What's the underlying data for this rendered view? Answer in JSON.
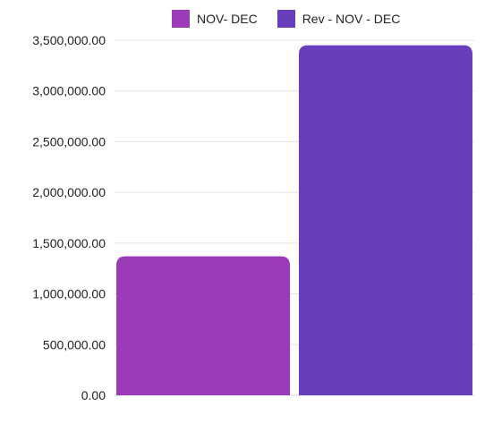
{
  "chart_data": {
    "type": "bar",
    "title": "",
    "xlabel": "",
    "ylabel": "",
    "categories": [
      ""
    ],
    "series": [
      {
        "name": "NOV- DEC",
        "values": [
          1370000
        ],
        "color": "#9b3bb8"
      },
      {
        "name": "Rev - NOV - DEC",
        "values": [
          3450000
        ],
        "color": "#673fbd"
      }
    ],
    "ylim": [
      0,
      3500000
    ],
    "yticks": [
      0,
      500000,
      1000000,
      1500000,
      2000000,
      2500000,
      3000000,
      3500000
    ],
    "ytick_labels": [
      "0.00",
      "500,000.00",
      "1,000,000.00",
      "1,500,000.00",
      "2,000,000.00",
      "2,500,000.00",
      "3,000,000.00",
      "3,500,000.00"
    ],
    "grid": true,
    "legend_position": "top"
  }
}
